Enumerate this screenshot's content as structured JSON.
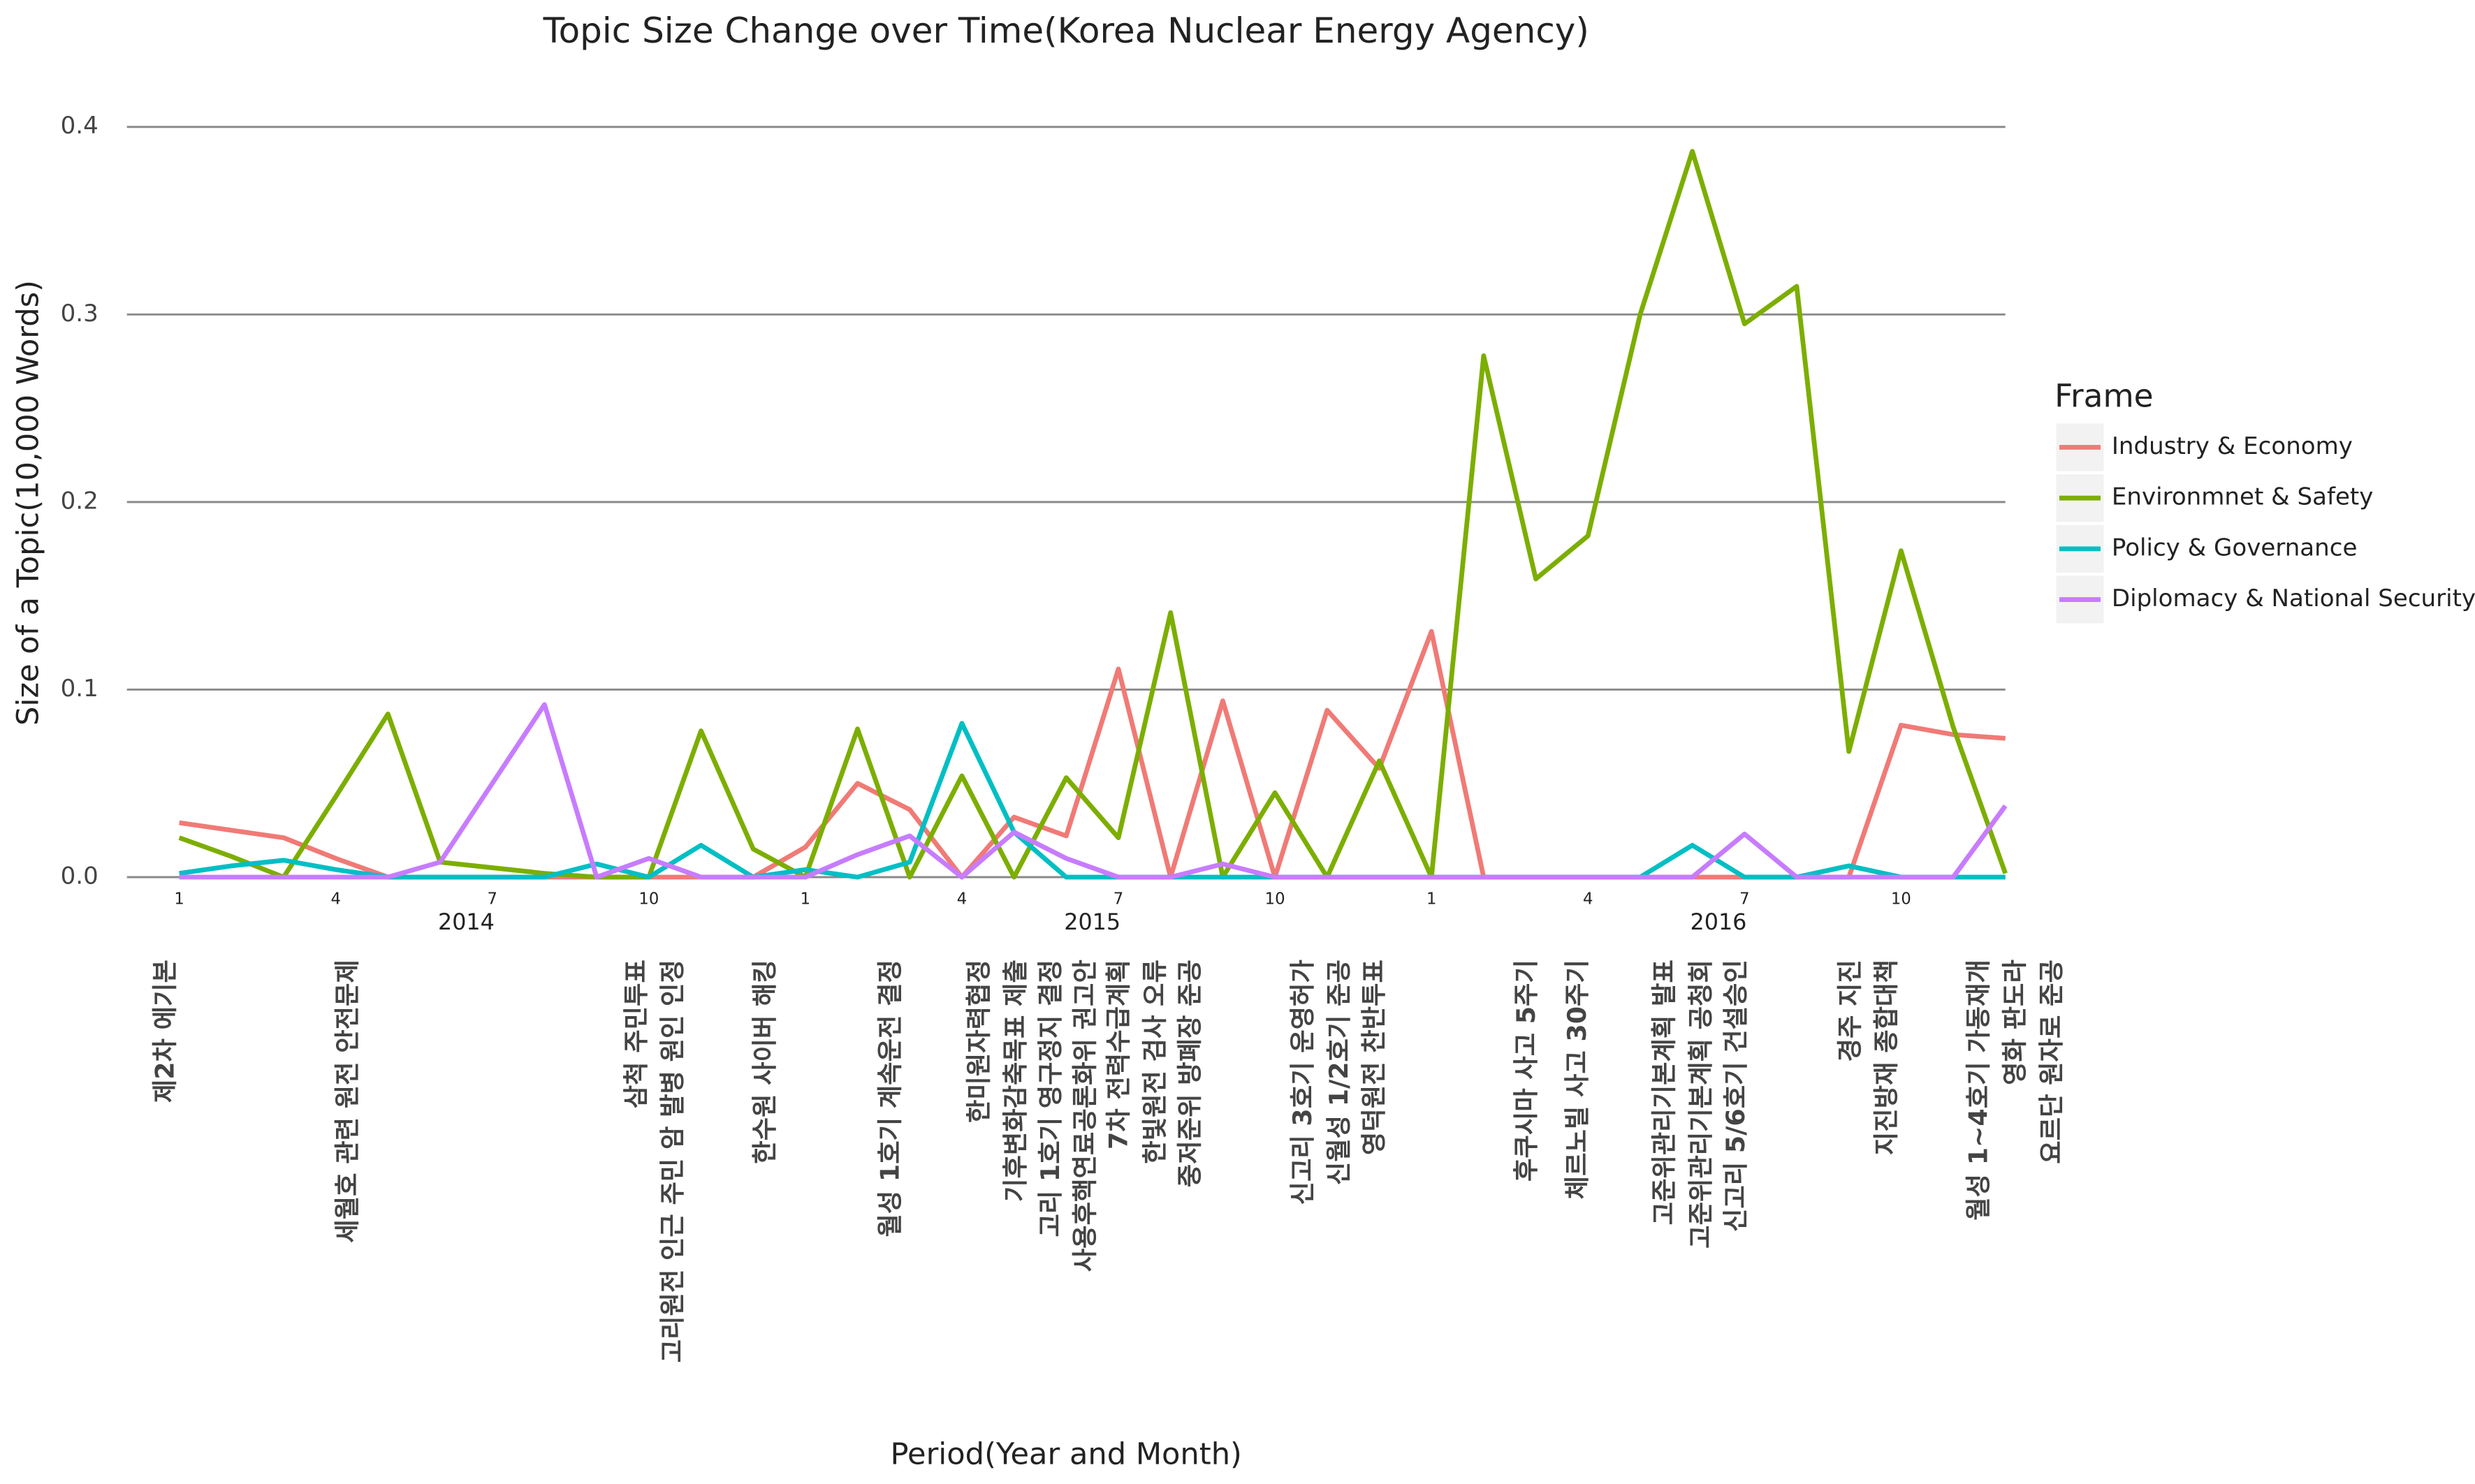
{
  "chart_data": {
    "type": "line",
    "title": "Topic Size Change over Time(Korea Nuclear Energy Agency)",
    "xlabel": "Period(Year and Month)",
    "ylabel": "Size of a Topic(10,000 Words)",
    "categories": [
      1,
      null,
      null,
      4,
      null,
      null,
      7,
      null,
      null,
      10,
      null,
      null,
      1,
      null,
      null,
      4,
      null,
      null,
      7,
      null,
      null,
      10,
      null,
      null,
      1,
      null,
      null,
      4,
      null,
      null,
      7,
      null,
      null,
      10,
      null,
      null
    ],
    "years": [
      2014,
      2015,
      2016
    ],
    "ylim": [
      0,
      0.4
    ],
    "yticks": [
      {
        "value": 0,
        "label": "0.0"
      },
      0.1,
      0.2,
      0.3,
      0.4
    ],
    "grid": true,
    "legend_title": "Frame",
    "legend": "right",
    "series": [
      {
        "name": "Industry & Economy",
        "color": "#f07a76",
        "values": [
          0.029,
          0.025,
          0.021,
          0.01,
          0,
          0,
          0,
          0,
          0,
          0,
          0,
          0,
          0.016,
          0.05,
          0.036,
          0,
          0.032,
          0.022,
          0.111,
          0,
          0.094,
          0,
          0.089,
          0.058,
          0.131,
          0,
          0,
          0,
          0,
          0,
          0,
          0,
          0,
          0.081,
          0.076,
          0.074
        ]
      },
      {
        "name": "Environmnet & Safety",
        "color": "#7cae00",
        "values": [
          0.021,
          0.011,
          0,
          0.043,
          0.087,
          0.008,
          0.005,
          0.002,
          0,
          0,
          0.078,
          0.015,
          0,
          0.079,
          0,
          0.054,
          0,
          0.053,
          0.021,
          0.141,
          0,
          0.045,
          0,
          0.062,
          0,
          0.278,
          0.159,
          0.182,
          0.3,
          0.387,
          0.295,
          0.315,
          0.067,
          0.174,
          0.08,
          0.002
        ]
      },
      {
        "name": "Policy & Governance",
        "color": "#00bfc4",
        "values": [
          0.002,
          0.006,
          0.009,
          0.004,
          0,
          0,
          0,
          0,
          0.007,
          0,
          0.017,
          0,
          0.004,
          0,
          0.008,
          0.082,
          0.024,
          0,
          0,
          0,
          0,
          0,
          0,
          0,
          0,
          0,
          0,
          0,
          0,
          0.017,
          0,
          0,
          0.006,
          0,
          0,
          0
        ]
      },
      {
        "name": "Diplomacy & National Security",
        "color": "#c77cff",
        "values": [
          0,
          0,
          0,
          0,
          0,
          0.008,
          0.05,
          0.092,
          0,
          0.01,
          0,
          0,
          0,
          0.012,
          0.022,
          0,
          0.024,
          0.01,
          0,
          0,
          0.007,
          0,
          0,
          0,
          0,
          0,
          0,
          0,
          0,
          0,
          0.023,
          0,
          0,
          0,
          0,
          0.038
        ]
      }
    ],
    "annotations": [
      "제2차 에기본",
      "세월호 관련 원전 안전문제",
      "삼척 주민투표",
      "고리원전 인근 주민 암 발병 원인 인정",
      "한수원 사이버 해킹",
      "월성 1호기 계속운전 결정",
      "한미원자력협정",
      "기후변화감축목표 제출",
      "고리 1호기 영구정지 결정",
      "사용후핵연료공론화위 권고안",
      "7차 전력수급계획",
      "한빛원전 검사 오류",
      "중저준위 방폐장 준공",
      "신고리 3호기 운영허가",
      "신월성 1/2호기 준공",
      "영덕원전 찬반투표",
      "후쿠시마 사고 5주기",
      "체르노빌 사고 30주기",
      "고준위관리기본계획 발표",
      "고준위관리기본계획 공청회",
      "신고리 5/6호기 건설승인",
      "경주 지진",
      "지진방재 종합대책",
      "월성 1~4호기 가동재개",
      "영화 판도라",
      "요르단 원자로 준공"
    ]
  }
}
